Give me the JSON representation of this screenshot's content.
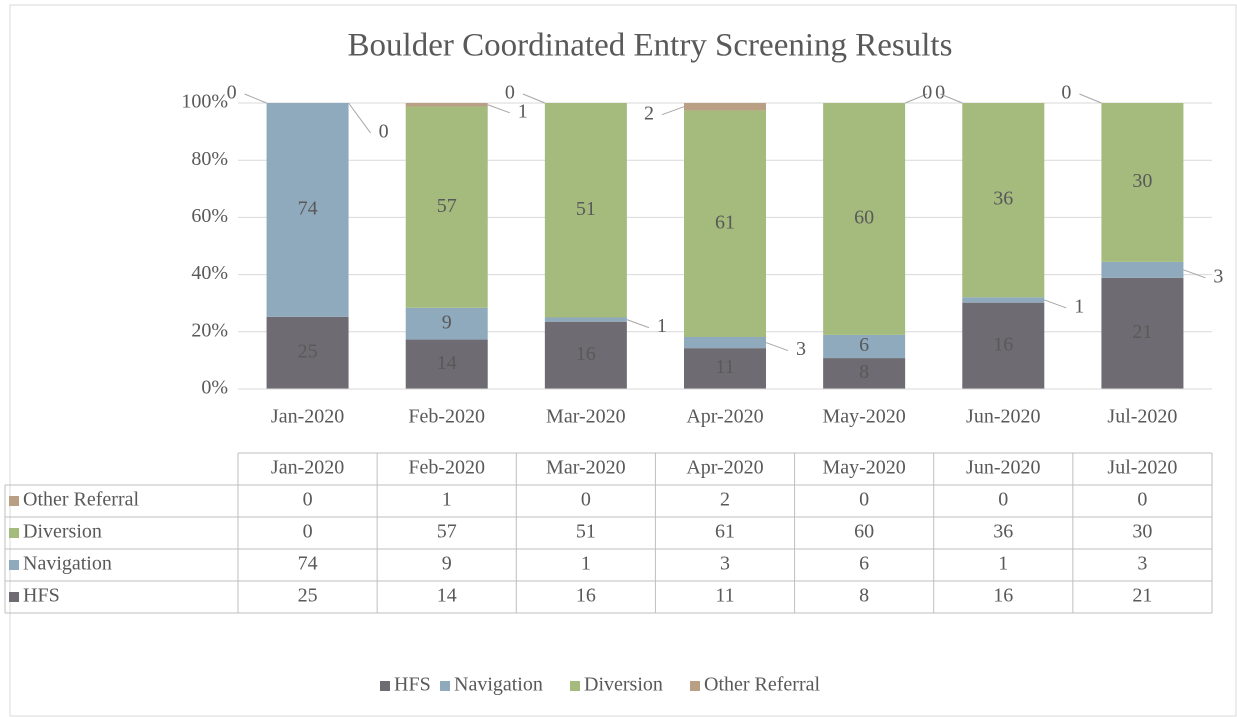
{
  "chart_data": {
    "type": "bar",
    "stacked": "percent",
    "title": "Boulder Coordinated Entry Screening Results",
    "categories": [
      "Jan-2020",
      "Feb-2020",
      "Mar-2020",
      "Apr-2020",
      "May-2020",
      "Jun-2020",
      "Jul-2020"
    ],
    "series": [
      {
        "name": "HFS",
        "color": "#6e6b72",
        "values": [
          25,
          14,
          16,
          11,
          8,
          16,
          21
        ]
      },
      {
        "name": "Navigation",
        "color": "#8fa9bd",
        "values": [
          74,
          9,
          1,
          3,
          6,
          1,
          3
        ]
      },
      {
        "name": "Diversion",
        "color": "#a4bb7d",
        "values": [
          0,
          57,
          51,
          61,
          60,
          36,
          30
        ]
      },
      {
        "name": "Other Referral",
        "color": "#b9a084",
        "values": [
          0,
          1,
          0,
          2,
          0,
          0,
          0
        ]
      }
    ],
    "ylim": [
      0,
      100
    ],
    "yticks": [
      {
        "value": 0,
        "label": "0%"
      },
      {
        "value": 20,
        "label": "20%"
      },
      {
        "value": 40,
        "label": "40%"
      },
      {
        "value": 60,
        "label": "60%"
      },
      {
        "value": 80,
        "label": "80%"
      },
      {
        "value": 100,
        "label": "100%"
      }
    ],
    "grid": true,
    "data_table": true,
    "legend": "bottom"
  }
}
